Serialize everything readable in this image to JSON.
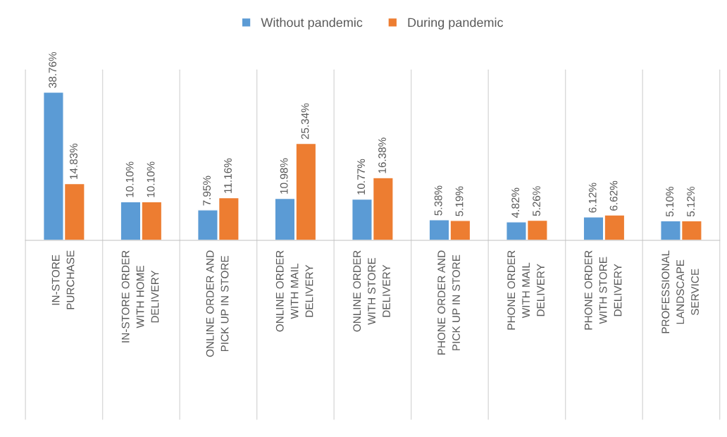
{
  "chart_data": {
    "type": "bar",
    "categories": [
      "IN-STORE\nPURCHASE",
      "IN-STORE ORDER\nWITH HOME\nDELIVERY",
      "ONLINE ORDER AND\nPICK UP IN STORE",
      "ONLINE ORDER\nWITH MAIL\nDELIVERY",
      "ONLINE ORDER\nWITH STORE\nDELIVERY",
      "PHONE ORDER AND\nPICK UP IN STORE",
      "PHONE ORDER\nWITH MAIL\nDELIVERY",
      "PHONE ORDER\nWITH STORE\nDELIVERY",
      "PROFESSIONAL\nLANDSCAPE\nSERVICE"
    ],
    "series": [
      {
        "name": "Without pandemic",
        "color": "#5b9bd5",
        "values": [
          38.76,
          10.1,
          7.95,
          10.98,
          10.77,
          5.38,
          4.82,
          6.12,
          5.1
        ],
        "value_labels": [
          "38.76%",
          "10.10%",
          "7.95%",
          "10.98%",
          "10.77%",
          "5.38%",
          "4.82%",
          "6.12%",
          "5.10%"
        ]
      },
      {
        "name": "During pandemic",
        "color": "#ed7d31",
        "values": [
          14.83,
          10.1,
          11.16,
          25.34,
          16.38,
          5.19,
          5.26,
          6.62,
          5.12
        ],
        "value_labels": [
          "14.83%",
          "10.10%",
          "11.16%",
          "25.34%",
          "16.38%",
          "5.19%",
          "5.26%",
          "6.62%",
          "5.12%"
        ]
      }
    ],
    "grid": "x",
    "legend": "top"
  }
}
